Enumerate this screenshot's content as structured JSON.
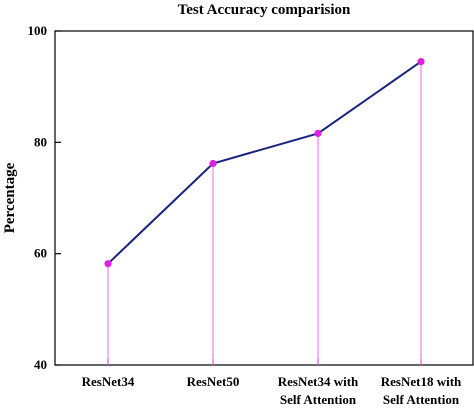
{
  "chart_data": {
    "type": "line",
    "title": "Test Accuracy comparision",
    "xlabel": "",
    "ylabel": "Percentage",
    "categories": [
      [
        "ResNet34"
      ],
      [
        "ResNet50"
      ],
      [
        "ResNet34 with",
        "Self Attention"
      ],
      [
        "ResNet18 with",
        "Self Attention"
      ]
    ],
    "values": [
      58.2,
      76.2,
      81.6,
      94.5
    ],
    "ylim": [
      40,
      100
    ],
    "yticks": [
      40,
      60,
      80,
      100
    ],
    "grid": false,
    "colors": {
      "line": "#1a237e",
      "marker": "#e020e0",
      "stem": "#ee82ee",
      "axis": "#000000"
    }
  }
}
